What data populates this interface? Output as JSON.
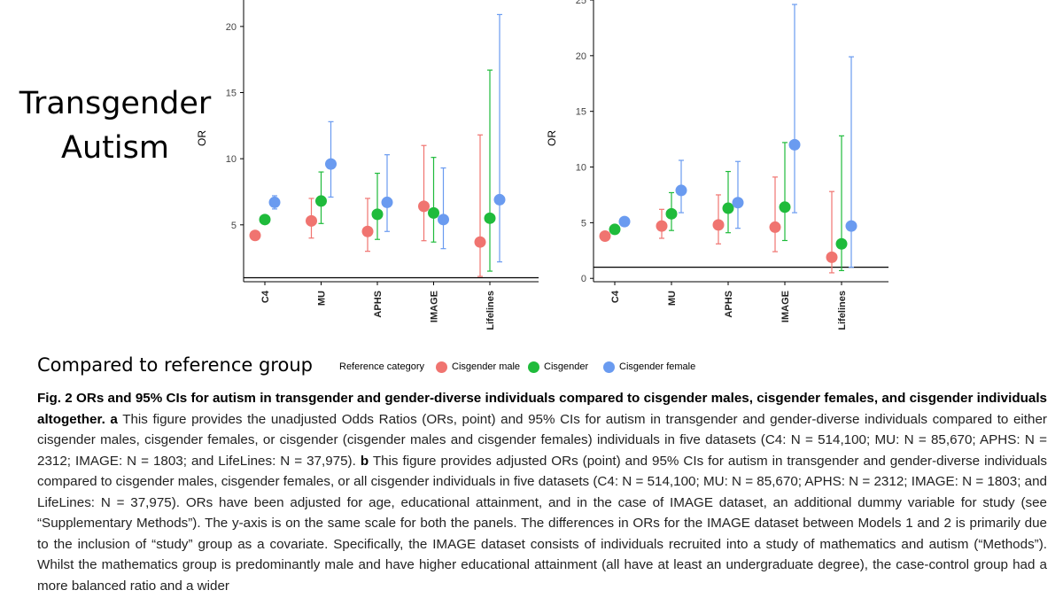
{
  "side_label": {
    "line1": "Transgender",
    "line2": "Autism"
  },
  "legend": {
    "lead": "Compared to reference group",
    "title": "Reference category",
    "items": [
      {
        "label": "Cisgender male",
        "color": "#f07470"
      },
      {
        "label": "Cisgender",
        "color": "#1fbb3b"
      },
      {
        "label": "Cisgender female",
        "color": "#6a9bf0"
      }
    ]
  },
  "chart_data": [
    {
      "type": "scatter",
      "panel": "a",
      "ylabel": "OR",
      "categories": [
        "C4",
        "MU",
        "APHS",
        "IMAGE",
        "Lifelines"
      ],
      "ylim": [
        0.7,
        22
      ],
      "yticks": [
        5,
        10,
        15,
        20
      ],
      "reference_line": 1,
      "series": [
        {
          "name": "Cisgender male",
          "color": "#f07470",
          "values": [
            4.2,
            5.3,
            4.5,
            6.4,
            3.7
          ],
          "lower": [
            4.2,
            4.0,
            3.0,
            3.8,
            1.1
          ],
          "upper": [
            4.2,
            7.0,
            7.0,
            11.0,
            11.8
          ]
        },
        {
          "name": "Cisgender",
          "color": "#1fbb3b",
          "values": [
            5.4,
            6.8,
            5.8,
            5.9,
            5.5
          ],
          "lower": [
            5.1,
            5.1,
            3.9,
            3.7,
            1.5
          ],
          "upper": [
            5.7,
            9.0,
            8.9,
            10.1,
            16.7
          ]
        },
        {
          "name": "Cisgender female",
          "color": "#6a9bf0",
          "values": [
            6.7,
            9.6,
            6.7,
            5.4,
            6.9
          ],
          "lower": [
            6.2,
            7.1,
            4.5,
            3.2,
            2.2
          ],
          "upper": [
            7.2,
            12.8,
            10.3,
            9.3,
            20.9
          ]
        }
      ]
    },
    {
      "type": "scatter",
      "panel": "b",
      "ylabel": "OR",
      "categories": [
        "C4",
        "MU",
        "APHS",
        "IMAGE",
        "Lifelines"
      ],
      "ylim": [
        -0.3,
        25
      ],
      "yticks": [
        0,
        5,
        10,
        15,
        20,
        25
      ],
      "reference_line": 1,
      "series": [
        {
          "name": "Cisgender male",
          "color": "#f07470",
          "values": [
            3.8,
            4.7,
            4.8,
            4.6,
            1.9
          ],
          "lower": [
            3.8,
            3.6,
            3.1,
            2.4,
            0.5
          ],
          "upper": [
            3.8,
            6.2,
            7.5,
            9.1,
            7.8
          ]
        },
        {
          "name": "Cisgender",
          "color": "#1fbb3b",
          "values": [
            4.4,
            5.8,
            6.3,
            6.4,
            3.1
          ],
          "lower": [
            4.3,
            4.3,
            4.1,
            3.4,
            0.7
          ],
          "upper": [
            4.6,
            7.7,
            9.6,
            12.2,
            12.8
          ]
        },
        {
          "name": "Cisgender female",
          "color": "#6a9bf0",
          "values": [
            5.1,
            7.9,
            6.8,
            12.0,
            4.7
          ],
          "lower": [
            5.0,
            5.9,
            4.5,
            5.9,
            1.0
          ],
          "upper": [
            5.3,
            10.6,
            10.5,
            24.6,
            19.9
          ]
        }
      ]
    }
  ],
  "caption": {
    "fig_label": "Fig. 2",
    "title": "ORs and 95% CIs for autism in transgender and gender-diverse individuals compared to cisgender males, cisgender females, and cisgender individuals altogether.",
    "a_label": "a",
    "a_text": "This figure provides the unadjusted Odds Ratios (ORs, point) and 95% CIs for autism in transgender and gender-diverse individuals compared to either cisgender males, cisgender females, or cisgender (cisgender males and cisgender females) individuals in five datasets (C4: N = 514,100; MU: N = 85,670; APHS: N = 2312; IMAGE: N = 1803; and LifeLines: N = 37,975).",
    "b_label": "b",
    "b_text": "This figure provides adjusted ORs (point) and 95% CIs for autism in transgender and gender-diverse individuals compared to cisgender males, cisgender females, or all cisgender individuals in five datasets (C4: N = 514,100; MU: N = 85,670; APHS: N = 2312; IMAGE: N = 1803; and LifeLines: N = 37,975). ORs have been adjusted for age, educational attainment, and in the case of IMAGE dataset, an additional dummy variable for study (see “Supplementary Methods”). The y-axis is on the same scale for both the panels. The differences in ORs for the IMAGE dataset between Models 1 and 2 is primarily due to the inclusion of “study” group as a covariate. Specifically, the IMAGE dataset consists of individuals recruited into a study of mathematics and autism (“Methods”). Whilst the mathematics group is predominantly male and have higher educational attainment (all have at least an undergraduate degree), the case-control group had a more balanced ratio and a wider"
  }
}
